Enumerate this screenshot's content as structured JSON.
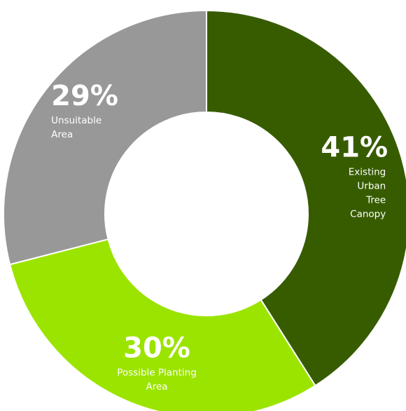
{
  "chart_data": {
    "type": "pie",
    "donut": true,
    "title": "",
    "slices": [
      {
        "label": "Existing Urban Tree Canopy",
        "value": 41,
        "display": "41%",
        "label_lines": [
          "Existing",
          "Urban",
          "Tree",
          "Canopy"
        ],
        "color": "#375c00"
      },
      {
        "label": "Possible Planting Area",
        "value": 30,
        "display": "30%",
        "label_lines": [
          "Possible Planting",
          "Area"
        ],
        "color": "#9be400"
      },
      {
        "label": "Unsuitable Area",
        "value": 29,
        "display": "29%",
        "label_lines": [
          "Unsuitable",
          "Area"
        ],
        "color": "#989898"
      }
    ]
  }
}
